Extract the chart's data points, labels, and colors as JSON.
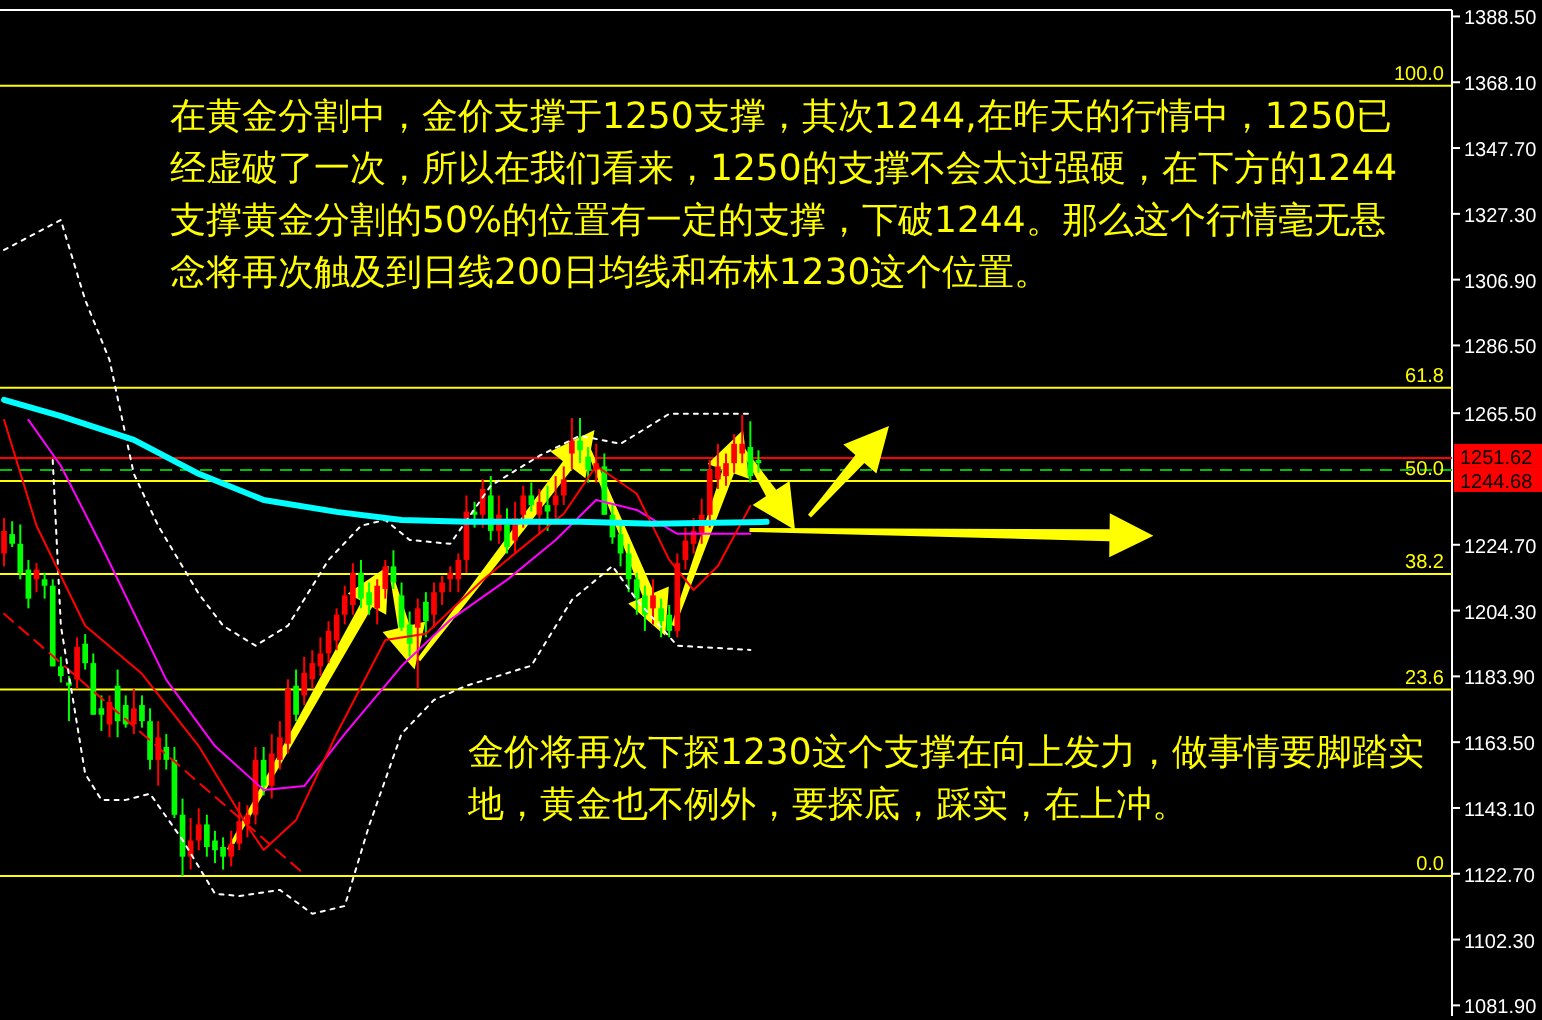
{
  "chart_data": {
    "type": "candlestick",
    "tick_labels": "y",
    "grid": false,
    "ylim": [
      1078.6,
      1390.5
    ],
    "yticks": [
      {
        "value": 1388.5,
        "label": "1388.50"
      },
      {
        "value": 1368.1,
        "label": "1368.10"
      },
      {
        "value": 1347.7,
        "label": "1347.70"
      },
      {
        "value": 1327.3,
        "label": "1327.30"
      },
      {
        "value": 1306.9,
        "label": "1306.90"
      },
      {
        "value": 1286.5,
        "label": "1286.50"
      },
      {
        "value": 1265.5,
        "label": "1265.50"
      },
      {
        "value": 1224.7,
        "label": "1224.70"
      },
      {
        "value": 1204.3,
        "label": "1204.30"
      },
      {
        "value": 1183.9,
        "label": "1183.90"
      },
      {
        "value": 1163.5,
        "label": "1163.50"
      },
      {
        "value": 1143.1,
        "label": "1143.10"
      },
      {
        "value": 1122.7,
        "label": "1122.70"
      },
      {
        "value": 1102.3,
        "label": "1102.30"
      },
      {
        "value": 1081.9,
        "label": "1081.90"
      }
    ],
    "categories": [
      null,
      null,
      null,
      null,
      null,
      null,
      null,
      null,
      null,
      null,
      null,
      null,
      null,
      null,
      null,
      null,
      null,
      null,
      null,
      null,
      null,
      null,
      null,
      null,
      null,
      null,
      null,
      null,
      null,
      null,
      null,
      null,
      null,
      null,
      null,
      null,
      null,
      null,
      null,
      null,
      null,
      null,
      null,
      null,
      null,
      null,
      null,
      null,
      null,
      null,
      null,
      null,
      null,
      null,
      null,
      null,
      null,
      null,
      null,
      null,
      null,
      null,
      null,
      null,
      null,
      null,
      null,
      null,
      null,
      null,
      null,
      null,
      null,
      null,
      null,
      null,
      null,
      null,
      null,
      null,
      null,
      null,
      null,
      null,
      null,
      null,
      null,
      null,
      null,
      null,
      null,
      null,
      null,
      null,
      null,
      null,
      null,
      null,
      null,
      null,
      null,
      null,
      null,
      null,
      null,
      null,
      null,
      null,
      null,
      null,
      null,
      null,
      null,
      null,
      null,
      null,
      null,
      null,
      null,
      null,
      null,
      null,
      null,
      null,
      null,
      null,
      null,
      null,
      null,
      null,
      null,
      null,
      null,
      null,
      null,
      null,
      null,
      null,
      null,
      null,
      null,
      null,
      null,
      null,
      null,
      null,
      null,
      null,
      null,
      null,
      null,
      null,
      null,
      null,
      null,
      null,
      null,
      null,
      null,
      null,
      null,
      null,
      null,
      null,
      null,
      null,
      null,
      null,
      null,
      null,
      null,
      null,
      null,
      null,
      null,
      null,
      null,
      null,
      null
    ],
    "ohlc": [
      [
        1222,
        1233,
        1218,
        1229
      ],
      [
        1228,
        1232,
        1224,
        1225
      ],
      [
        1225,
        1231,
        1214,
        1216
      ],
      [
        1217,
        1220,
        1205,
        1208
      ],
      [
        1214,
        1219,
        1210,
        1217
      ],
      [
        1214,
        1216,
        1208,
        1212
      ],
      [
        1212,
        1214,
        1187,
        1187
      ],
      [
        1187,
        1190,
        1182,
        1184
      ],
      [
        1182,
        1184,
        1170,
        1181
      ],
      [
        1183,
        1196,
        1180,
        1193
      ],
      [
        1194,
        1197,
        1186,
        1188
      ],
      [
        1188,
        1191,
        1172,
        1172
      ],
      [
        1174,
        1178,
        1167,
        1172
      ],
      [
        1169,
        1178,
        1165,
        1176
      ],
      [
        1181,
        1186,
        1165,
        1170
      ],
      [
        1175,
        1178,
        1168,
        1169
      ],
      [
        1169,
        1180,
        1166,
        1174
      ],
      [
        1175,
        1178,
        1168,
        1170
      ],
      [
        1170,
        1174,
        1155,
        1158
      ],
      [
        1158,
        1170,
        1150,
        1165
      ],
      [
        1162,
        1166,
        1155,
        1158
      ],
      [
        1158,
        1162,
        1140,
        1141
      ],
      [
        1141,
        1146,
        1122,
        1128
      ],
      [
        1128,
        1140,
        1124,
        1133
      ],
      [
        1133,
        1143,
        1130,
        1138
      ],
      [
        1138,
        1141,
        1128,
        1131
      ],
      [
        1133,
        1136,
        1126,
        1130
      ],
      [
        1131,
        1134,
        1124,
        1128
      ],
      [
        1128,
        1136,
        1125,
        1132
      ],
      [
        1132,
        1145,
        1130,
        1139
      ],
      [
        1138,
        1144,
        1134,
        1141
      ],
      [
        1141,
        1162,
        1138,
        1158
      ],
      [
        1158,
        1162,
        1147,
        1150
      ],
      [
        1150,
        1166,
        1146,
        1160
      ],
      [
        1158,
        1170,
        1155,
        1165
      ],
      [
        1163,
        1183,
        1160,
        1180
      ],
      [
        1181,
        1186,
        1170,
        1172
      ],
      [
        1178,
        1190,
        1175,
        1185
      ],
      [
        1183,
        1192,
        1180,
        1188
      ],
      [
        1187,
        1196,
        1184,
        1191
      ],
      [
        1191,
        1201,
        1188,
        1198
      ],
      [
        1195,
        1205,
        1192,
        1203
      ],
      [
        1203,
        1212,
        1200,
        1209
      ],
      [
        1206,
        1219,
        1203,
        1216
      ],
      [
        1216,
        1220,
        1205,
        1208
      ],
      [
        1210,
        1213,
        1203,
        1206
      ],
      [
        1205,
        1214,
        1200,
        1212
      ],
      [
        1211,
        1220,
        1208,
        1218
      ],
      [
        1218,
        1223,
        1211,
        1213
      ],
      [
        1209,
        1213,
        1198,
        1199
      ],
      [
        1200,
        1204,
        1190,
        1194
      ],
      [
        1199,
        1208,
        1180,
        1205
      ],
      [
        1207,
        1210,
        1196,
        1201
      ],
      [
        1203,
        1213,
        1199,
        1210
      ],
      [
        1210,
        1215,
        1206,
        1213
      ],
      [
        1214,
        1218,
        1210,
        1216
      ],
      [
        1214,
        1222,
        1210,
        1220
      ],
      [
        1220,
        1240,
        1216,
        1235
      ],
      [
        1235,
        1238,
        1230,
        1234
      ],
      [
        1234,
        1245,
        1230,
        1242
      ],
      [
        1240,
        1246,
        1226,
        1229
      ],
      [
        1229,
        1240,
        1225,
        1234
      ],
      [
        1231,
        1236,
        1222,
        1224
      ],
      [
        1226,
        1238,
        1222,
        1233
      ],
      [
        1234,
        1243,
        1230,
        1240
      ],
      [
        1240,
        1244,
        1235,
        1237
      ],
      [
        1234,
        1242,
        1228,
        1238
      ],
      [
        1237,
        1243,
        1229,
        1235
      ],
      [
        1237,
        1246,
        1232,
        1240
      ],
      [
        1240,
        1249,
        1237,
        1245
      ],
      [
        1253,
        1264,
        1248,
        1257
      ],
      [
        1257,
        1264,
        1250,
        1254
      ],
      [
        1252,
        1255,
        1244,
        1248
      ],
      [
        1248,
        1256,
        1244,
        1250
      ],
      [
        1249,
        1253,
        1234,
        1234
      ],
      [
        1234,
        1237,
        1225,
        1227
      ],
      [
        1228,
        1231,
        1218,
        1222
      ],
      [
        1222,
        1225,
        1210,
        1214
      ],
      [
        1214,
        1216,
        1203,
        1208
      ],
      [
        1209,
        1212,
        1198,
        1203
      ],
      [
        1205,
        1214,
        1200,
        1209
      ],
      [
        1205,
        1208,
        1196,
        1201
      ],
      [
        1203,
        1206,
        1196,
        1198
      ],
      [
        1198,
        1222,
        1196,
        1219
      ],
      [
        1220,
        1230,
        1217,
        1226
      ],
      [
        1225,
        1233,
        1222,
        1229
      ],
      [
        1228,
        1239,
        1225,
        1234
      ],
      [
        1234,
        1251,
        1230,
        1248
      ],
      [
        1245,
        1256,
        1242,
        1249
      ],
      [
        1246,
        1253,
        1243,
        1250
      ],
      [
        1250,
        1259,
        1247,
        1256
      ],
      [
        1253,
        1265,
        1250,
        1256
      ],
      [
        1255,
        1263,
        1244,
        1246
      ],
      [
        1251,
        1254,
        1247,
        1250
      ],
      null,
      null,
      null,
      null,
      null,
      null,
      null,
      null,
      null,
      null,
      null,
      null,
      null,
      null,
      null,
      null,
      null,
      null,
      null,
      null,
      null,
      null,
      null,
      null,
      null,
      null,
      null,
      null,
      null,
      null,
      null,
      null,
      null,
      null,
      null,
      null,
      null,
      null,
      null,
      null,
      null,
      null,
      null,
      null,
      null,
      null,
      null,
      null,
      null,
      null,
      null,
      null,
      null,
      null,
      null,
      null,
      null,
      null,
      null,
      null,
      null,
      null,
      null,
      null,
      null,
      null,
      null,
      null,
      null,
      null,
      null,
      null,
      null,
      null,
      null,
      null,
      null,
      null,
      null,
      null,
      null,
      null,
      null,
      null,
      null
    ],
    "series": [
      {
        "type": "line",
        "color": "#ff0000",
        "line_style": "dashed",
        "values": [
          1203.3,
          null,
          null,
          null,
          null,
          null,
          null,
          null,
          null,
          null,
          null,
          null,
          null,
          null,
          null,
          null,
          null,
          null,
          null,
          null,
          null,
          null,
          null,
          null,
          null,
          null,
          null,
          null,
          null,
          null,
          null,
          null,
          null,
          null,
          null,
          null,
          null,
          1122.6,
          null,
          null,
          null,
          null,
          null,
          null,
          null,
          null,
          null,
          null,
          null,
          null,
          null,
          null,
          null,
          null,
          null,
          null,
          null,
          null,
          null,
          null,
          null,
          null,
          null,
          null,
          null,
          null,
          null,
          null,
          null,
          null,
          null,
          null,
          null,
          null,
          null,
          null,
          null,
          null,
          null,
          null,
          null,
          null,
          null,
          null,
          null,
          null,
          null,
          null,
          null,
          null,
          null,
          null,
          null,
          null,
          null,
          null,
          null,
          null,
          null,
          null,
          null,
          null,
          null,
          null,
          null,
          null,
          null,
          null,
          null,
          null,
          null,
          null,
          null,
          null,
          null,
          null,
          null,
          null,
          null,
          null,
          null,
          null,
          null,
          null,
          null,
          null,
          null,
          null,
          null,
          null,
          null,
          null,
          null,
          null,
          null,
          null,
          null,
          null,
          null,
          null,
          null,
          null,
          null,
          null,
          null,
          null,
          null,
          null,
          null,
          null,
          null,
          null,
          null,
          null,
          null,
          null,
          null,
          null,
          null,
          null,
          null,
          null,
          null,
          null,
          null,
          null,
          null,
          null,
          null,
          null,
          null,
          null,
          null,
          null,
          null,
          null,
          null,
          null,
          null
        ]
      },
      {
        "type": "line",
        "color": "#ffffff",
        "line_style": "dotted",
        "values": [
          1316.1,
          null,
          null,
          null,
          null,
          null,
          null,
          1325.4,
          null,
          null,
          1300.6,
          null,
          null,
          1282.0,
          null,
          null,
          1246.7,
          null,
          null,
          1230.6,
          null,
          null,
          null,
          null,
          1209.5,
          null,
          null,
          1199.6,
          null,
          null,
          null,
          1193.4,
          null,
          null,
          null,
          1199.6,
          null,
          null,
          null,
          null,
          1220.0,
          null,
          null,
          null,
          1230.6,
          null,
          null,
          1232.4,
          null,
          null,
          1226.2,
          null,
          null,
          null,
          null,
          1225.0,
          null,
          null,
          null,
          null,
          1243.0,
          null,
          null,
          null,
          null,
          null,
          1252.3,
          null,
          null,
          null,
          null,
          1258.5,
          null,
          null,
          null,
          null,
          1256.0,
          null,
          null,
          null,
          null,
          null,
          1265.3,
          null,
          null,
          null,
          null,
          null,
          null,
          null,
          null,
          null,
          1265.3,
          null,
          null,
          null,
          null,
          null,
          null,
          null,
          null,
          null,
          null,
          null,
          null,
          null,
          null,
          null,
          null,
          null,
          null,
          null,
          null,
          null,
          null,
          null,
          null,
          null,
          null,
          null,
          null,
          null,
          null,
          null,
          null,
          null,
          null,
          null,
          null,
          null,
          null,
          null,
          null,
          null,
          null,
          null,
          null,
          null,
          null,
          null,
          null,
          null,
          null,
          null,
          null,
          null,
          null,
          null,
          null,
          null,
          null,
          null,
          null,
          null,
          null,
          null,
          null,
          null,
          null,
          null,
          null,
          null,
          null,
          null,
          null,
          null,
          null,
          null,
          null,
          null,
          null,
          null,
          null,
          null,
          null,
          null,
          null,
          null,
          null
        ]
      },
      {
        "type": "line",
        "color": "#ffffff",
        "line_style": "dotted",
        "values": [
          null,
          null,
          null,
          null,
          null,
          null,
          1251.0,
          1199.6,
          null,
          null,
          1153.7,
          null,
          1145.6,
          null,
          null,
          1145.6,
          null,
          null,
          1147.5,
          null,
          null,
          null,
          1133.2,
          null,
          null,
          null,
          1116.5,
          null,
          null,
          1115.8,
          null,
          null,
          null,
          null,
          1117.7,
          null,
          null,
          null,
          1110.3,
          null,
          null,
          null,
          1112.7,
          null,
          null,
          1137.6,
          null,
          null,
          null,
          1166.1,
          null,
          null,
          null,
          1176.6,
          null,
          null,
          null,
          1181.0,
          null,
          null,
          null,
          null,
          null,
          null,
          null,
          1187.2,
          null,
          null,
          null,
          null,
          1207.6,
          null,
          null,
          null,
          null,
          1218.1,
          null,
          null,
          1207.6,
          null,
          null,
          null,
          null,
          1193.4,
          null,
          null,
          null,
          null,
          null,
          null,
          null,
          null,
          1192.1,
          null,
          null,
          null,
          null,
          null,
          null,
          null,
          null,
          null,
          null,
          null,
          null,
          null,
          null,
          null,
          null,
          null,
          null,
          null,
          null,
          null,
          null,
          null,
          null,
          null,
          null,
          null,
          null,
          null,
          null,
          null,
          null,
          null,
          null,
          null,
          null,
          null,
          null,
          null,
          null,
          null,
          null,
          null,
          null,
          null,
          null,
          null,
          null,
          null,
          null,
          null,
          null,
          null,
          null,
          null,
          null,
          null,
          null,
          null,
          null,
          null,
          null,
          null,
          null,
          null,
          null,
          null,
          null,
          null,
          null,
          null,
          null,
          null,
          null,
          null,
          null,
          null,
          null,
          null,
          null,
          null,
          null,
          null,
          null,
          null,
          null
        ]
      },
      {
        "type": "line",
        "color": "#ff00ff",
        "values": [
          null,
          null,
          null,
          1263.4,
          null,
          null,
          null,
          1249.2,
          null,
          null,
          null,
          null,
          1224.4,
          null,
          null,
          null,
          null,
          null,
          null,
          null,
          1182.8,
          null,
          null,
          null,
          null,
          null,
          1162.3,
          null,
          null,
          null,
          null,
          null,
          1148.7,
          null,
          null,
          null,
          null,
          1149.9,
          null,
          null,
          null,
          null,
          1166.1,
          null,
          null,
          null,
          null,
          null,
          null,
          1187.1,
          null,
          null,
          null,
          null,
          null,
          1201.4,
          null,
          null,
          null,
          null,
          null,
          null,
          1213.8,
          null,
          null,
          null,
          null,
          null,
          1226.2,
          null,
          null,
          null,
          null,
          1238.6,
          null,
          null,
          null,
          null,
          1235.5,
          null,
          null,
          null,
          null,
          1228.1,
          null,
          null,
          null,
          null,
          null,
          null,
          null,
          null,
          1228.1,
          null,
          null,
          null,
          null,
          null,
          null,
          null,
          null,
          null,
          null,
          null,
          null,
          null,
          null,
          null,
          null,
          null,
          null,
          null,
          null,
          null,
          null,
          null,
          null,
          null,
          null,
          null,
          null,
          null,
          null,
          null,
          null,
          null,
          null,
          null,
          null,
          null,
          null,
          null,
          null,
          null,
          null,
          null,
          null,
          null,
          null,
          null,
          null,
          null,
          null,
          null,
          null,
          null,
          null,
          null,
          null,
          null,
          null,
          null,
          null,
          null,
          null,
          null,
          null,
          null,
          null,
          null,
          null,
          null,
          null,
          null,
          null,
          null,
          null,
          null,
          null,
          null,
          null,
          null,
          null,
          null,
          null,
          null,
          null,
          null,
          null
        ]
      },
      {
        "type": "line",
        "color": "#ff0000",
        "values": [
          1263.4,
          null,
          null,
          null,
          1230.6,
          null,
          null,
          null,
          null,
          null,
          1199.6,
          null,
          null,
          null,
          null,
          null,
          null,
          1184.7,
          null,
          null,
          null,
          null,
          null,
          null,
          1162.3,
          null,
          null,
          null,
          null,
          null,
          1137.5,
          null,
          1130.1,
          null,
          null,
          null,
          1139.4,
          null,
          null,
          null,
          null,
          1166.1,
          null,
          null,
          null,
          null,
          null,
          1195.2,
          null,
          null,
          null,
          null,
          1197.1,
          null,
          null,
          null,
          null,
          null,
          null,
          1213.8,
          null,
          null,
          1220.0,
          null,
          null,
          null,
          null,
          null,
          null,
          1234.3,
          null,
          null,
          null,
          1249.2,
          null,
          null,
          null,
          null,
          1240.5,
          null,
          null,
          null,
          1220.0,
          null,
          null,
          1210.7,
          null,
          null,
          1218.1,
          null,
          null,
          null,
          1236.7,
          null,
          null,
          null,
          null,
          null,
          null,
          null,
          null,
          null,
          null,
          null,
          null,
          null,
          null,
          null,
          null,
          null,
          null,
          null,
          null,
          null,
          null,
          null,
          null,
          null,
          null,
          null,
          null,
          null,
          null,
          null,
          null,
          null,
          null,
          null,
          null,
          null,
          null,
          null,
          null,
          null,
          null,
          null,
          null,
          null,
          null,
          null,
          null,
          null,
          null,
          null,
          null,
          null,
          null,
          null,
          null,
          null,
          null,
          null,
          null,
          null,
          null,
          null,
          null,
          null,
          null,
          null,
          null,
          null,
          null,
          null,
          null,
          null,
          null,
          null,
          null,
          null,
          null,
          null,
          null,
          null,
          null,
          null,
          null,
          null,
          null
        ]
      },
      {
        "type": "line",
        "color": "#00ffff",
        "values": [
          1269.6,
          null,
          null,
          null,
          null,
          null,
          null,
          1264.6,
          null,
          null,
          null,
          null,
          null,
          null,
          null,
          null,
          1257.2,
          null,
          null,
          null,
          null,
          null,
          null,
          null,
          1246.7,
          null,
          null,
          null,
          null,
          null,
          null,
          null,
          1238.6,
          null,
          null,
          null,
          null,
          null,
          null,
          null,
          null,
          1234.9,
          null,
          null,
          null,
          null,
          null,
          null,
          null,
          1232.4,
          null,
          null,
          null,
          null,
          null,
          null,
          null,
          1231.8,
          null,
          null,
          null,
          null,
          null,
          null,
          null,
          null,
          null,
          null,
          null,
          null,
          null,
          1231.8,
          null,
          null,
          null,
          null,
          null,
          null,
          null,
          null,
          1231.2,
          null,
          null,
          null,
          null,
          null,
          null,
          null,
          null,
          null,
          null,
          null,
          null,
          null,
          1231.8,
          null,
          null,
          null,
          null,
          null,
          null,
          null,
          null,
          null,
          null,
          null,
          null,
          null,
          null,
          null,
          null,
          null,
          null,
          null,
          null,
          null,
          null,
          null,
          null,
          null,
          null,
          null,
          null,
          null,
          null,
          null,
          null,
          null,
          null,
          null,
          null,
          null,
          null,
          null,
          null,
          null,
          null,
          null,
          null,
          null,
          null,
          null,
          null,
          null,
          null,
          null,
          null,
          null,
          null,
          null,
          null,
          null,
          null,
          null,
          null,
          null,
          null,
          null,
          null,
          null,
          null,
          null,
          null,
          null,
          null,
          null,
          null,
          null,
          null,
          null,
          null,
          null,
          null,
          null,
          null,
          null,
          null,
          null,
          null
        ]
      }
    ],
    "ref_lines": [
      {
        "axis": "y",
        "value": 1367.0,
        "color": "#ffff00"
      },
      {
        "axis": "y",
        "value": 1273.4,
        "color": "#ffff00"
      },
      {
        "axis": "y",
        "value": 1247.9,
        "color": "#00c000",
        "line_style": "dashed"
      },
      {
        "axis": "y",
        "value": 1251.62,
        "label": "1251.62",
        "color": "#ff0000"
      },
      {
        "axis": "y",
        "value": 1244.5,
        "color": "#ffff00"
      },
      {
        "axis": "y",
        "value": 1215.6,
        "color": "#ffff00"
      },
      {
        "axis": "y",
        "value": 1179.8,
        "color": "#ffff00"
      },
      {
        "axis": "y",
        "value": 1122.0,
        "color": "#ffff00"
      }
    ],
    "annotations": [
      {
        "text": "100.0",
        "y": 1367.0
      },
      {
        "text": "61.8",
        "y": 1273.4
      },
      {
        "text": "50.0",
        "y": 1244.5
      },
      {
        "text": "38.2",
        "y": 1215.6
      },
      {
        "text": "23.6",
        "y": 1179.8
      },
      {
        "text": "0.0",
        "y": 1122.0
      },
      "1244.68",
      "在黄金分割中，金价支撑于1250支撑，其次1244,在昨天的行情中，1250已经虚破了一次，所以在我们看来，1250的支撑不会太过强硬，在下方的1244支撑黄金分割的50%的位置有一定的支撑，下破1244。那么这个行情毫无悬念将再次触及到日线200日均线和布林1230这个位置。",
      "金价将再次下探1230这个支撑在向上发力，做事情要脚踏实地，黄金也不例外，要探底，踩实，在上冲。"
    ]
  }
}
